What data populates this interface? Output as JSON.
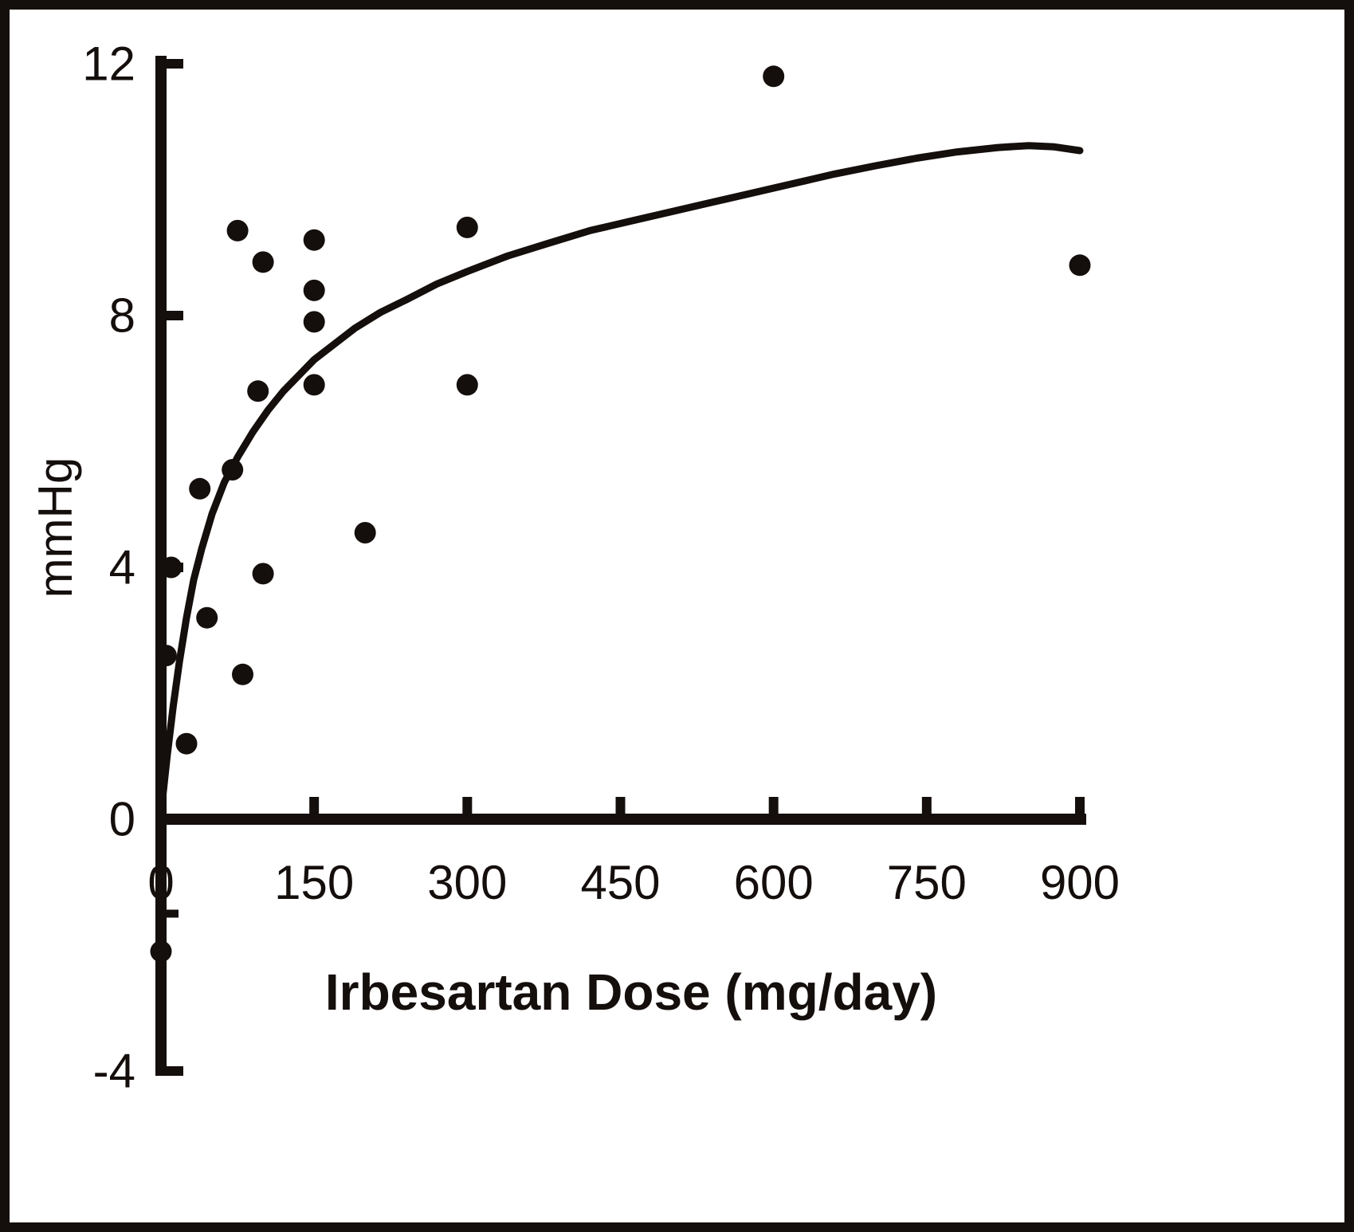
{
  "colors": {
    "ink": "#140e0c",
    "background": "#ffffff"
  },
  "chart_data": {
    "type": "scatter",
    "title": "",
    "xlabel": "Irbesartan Dose (mg/day)",
    "ylabel": "mmHg",
    "xlim": [
      0,
      900
    ],
    "ylim": [
      -4,
      12
    ],
    "grid": false,
    "legend": null,
    "x_ticks": [
      0,
      150,
      300,
      450,
      600,
      750,
      900
    ],
    "x_tick_labels": [
      "0",
      "150",
      "300",
      "450",
      "600",
      "750",
      "900"
    ],
    "y_ticks": [
      12,
      8,
      4,
      0,
      -4
    ],
    "y_tick_labels": [
      "12",
      "8",
      "4",
      "0",
      "-4"
    ],
    "y_minor_ticks": [
      -1.5
    ],
    "series": [
      {
        "name": "observed-points",
        "type": "scatter",
        "points": [
          [
            600,
            11.8
          ],
          [
            300,
            9.4
          ],
          [
            75,
            9.35
          ],
          [
            150,
            9.2
          ],
          [
            100,
            8.85
          ],
          [
            900,
            8.8
          ],
          [
            150,
            8.4
          ],
          [
            150,
            7.9
          ],
          [
            150,
            6.9
          ],
          [
            300,
            6.9
          ],
          [
            95,
            6.8
          ],
          [
            70,
            5.55
          ],
          [
            38,
            5.25
          ],
          [
            200,
            4.55
          ],
          [
            10,
            4.0
          ],
          [
            100,
            3.9
          ],
          [
            45,
            3.2
          ],
          [
            5,
            2.6
          ],
          [
            80,
            2.3
          ],
          [
            25,
            1.2
          ],
          [
            0,
            -2.1
          ]
        ]
      },
      {
        "name": "fitted-curve",
        "type": "line",
        "points": [
          [
            1,
            0.25
          ],
          [
            6,
            1.0
          ],
          [
            12,
            1.8
          ],
          [
            18,
            2.5
          ],
          [
            25,
            3.2
          ],
          [
            32,
            3.8
          ],
          [
            40,
            4.3
          ],
          [
            50,
            4.85
          ],
          [
            62,
            5.35
          ],
          [
            75,
            5.75
          ],
          [
            90,
            6.15
          ],
          [
            105,
            6.5
          ],
          [
            120,
            6.8
          ],
          [
            135,
            7.05
          ],
          [
            150,
            7.3
          ],
          [
            170,
            7.55
          ],
          [
            190,
            7.8
          ],
          [
            215,
            8.05
          ],
          [
            240,
            8.25
          ],
          [
            270,
            8.5
          ],
          [
            300,
            8.7
          ],
          [
            340,
            8.95
          ],
          [
            380,
            9.15
          ],
          [
            420,
            9.35
          ],
          [
            460,
            9.5
          ],
          [
            500,
            9.65
          ],
          [
            540,
            9.8
          ],
          [
            580,
            9.95
          ],
          [
            620,
            10.1
          ],
          [
            660,
            10.25
          ],
          [
            700,
            10.38
          ],
          [
            740,
            10.5
          ],
          [
            780,
            10.6
          ],
          [
            820,
            10.67
          ],
          [
            850,
            10.7
          ],
          [
            875,
            10.68
          ],
          [
            900,
            10.62
          ]
        ]
      }
    ]
  }
}
